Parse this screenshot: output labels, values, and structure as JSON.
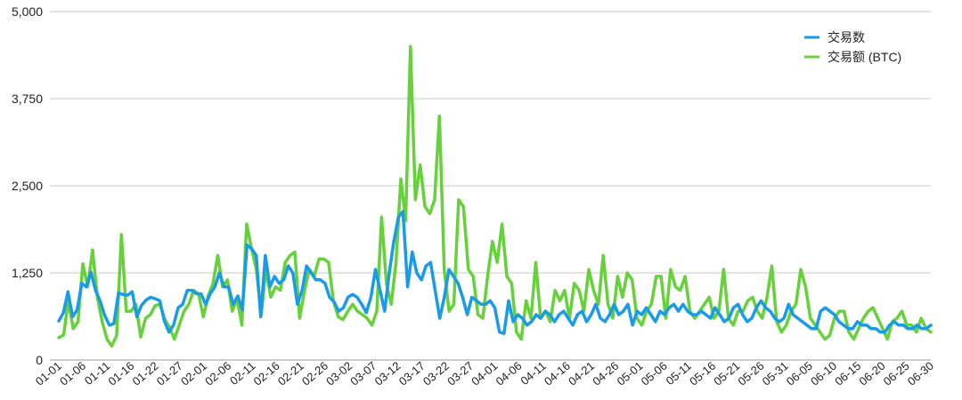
{
  "chart_data": {
    "type": "line",
    "title": "",
    "xlabel": "",
    "ylabel": "",
    "ylim": [
      0,
      5000
    ],
    "yticks": [
      0,
      1250,
      2500,
      3750,
      5000
    ],
    "ytick_labels": [
      "0",
      "1,250",
      "2,500",
      "3,750",
      "5,000"
    ],
    "grid": true,
    "legend_position": "top-right",
    "tick_labels": [
      "01-01",
      "01-06",
      "01-11",
      "01-16",
      "01-22",
      "01-27",
      "02-01",
      "02-06",
      "02-11",
      "02-16",
      "02-21",
      "02-26",
      "03-02",
      "03-07",
      "03-12",
      "03-17",
      "03-22",
      "03-27",
      "04-01",
      "04-06",
      "04-11",
      "04-16",
      "04-21",
      "04-26",
      "05-01",
      "05-06",
      "05-11",
      "05-16",
      "05-21",
      "05-26",
      "05-31",
      "06-05",
      "06-10",
      "06-15",
      "06-20",
      "06-25",
      "06-30"
    ],
    "series": [
      {
        "name": "交易数",
        "color": "#1a9be8",
        "values": [
          560,
          680,
          980,
          620,
          720,
          1100,
          1050,
          1260,
          1000,
          850,
          640,
          500,
          520,
          960,
          940,
          930,
          980,
          620,
          780,
          860,
          900,
          880,
          850,
          560,
          400,
          500,
          750,
          800,
          1000,
          1000,
          950,
          950,
          800,
          950,
          1050,
          1250,
          1050,
          1050,
          800,
          920,
          720,
          1650,
          1600,
          1500,
          620,
          1500,
          1050,
          1200,
          1100,
          1150,
          1350,
          1250,
          800,
          1000,
          1350,
          1250,
          1150,
          1150,
          1100,
          900,
          830,
          700,
          750,
          900,
          940,
          900,
          800,
          680,
          900,
          1300,
          1000,
          700,
          1250,
          1700,
          2050,
          2130,
          1050,
          1550,
          1250,
          1150,
          1350,
          1400,
          1000,
          600,
          900,
          1300,
          1200,
          1100,
          900,
          650,
          900,
          850,
          800,
          800,
          850,
          750,
          400,
          380,
          850,
          550,
          650,
          600,
          500,
          550,
          650,
          600,
          700,
          650,
          550,
          650,
          700,
          600,
          500,
          650,
          700,
          550,
          650,
          800,
          600,
          550,
          650,
          800,
          650,
          700,
          800,
          500,
          700,
          650,
          750,
          650,
          550,
          700,
          650,
          750,
          800,
          700,
          800,
          700,
          650,
          650,
          700,
          650,
          600,
          750,
          650,
          550,
          600,
          750,
          800,
          650,
          550,
          600,
          750,
          850,
          750,
          700,
          600,
          550,
          600,
          800,
          650,
          600,
          550,
          500,
          450,
          450,
          700,
          750,
          700,
          650,
          550,
          500,
          450,
          450,
          550,
          500,
          500,
          450,
          450,
          400,
          400,
          500,
          550,
          500,
          500,
          450,
          450,
          500,
          450,
          450,
          500
        ]
      },
      {
        "name": "交易额 (BTC)",
        "color": "#66d13a",
        "values": [
          320,
          360,
          850,
          450,
          550,
          1380,
          1050,
          1580,
          900,
          550,
          300,
          200,
          350,
          1800,
          700,
          700,
          800,
          330,
          600,
          650,
          780,
          800,
          580,
          470,
          300,
          500,
          700,
          800,
          1000,
          950,
          620,
          920,
          1100,
          1500,
          1050,
          1150,
          700,
          880,
          500,
          1950,
          1600,
          1300,
          650,
          1300,
          900,
          1050,
          1000,
          1400,
          1500,
          1550,
          600,
          1000,
          1300,
          1200,
          1450,
          1450,
          1400,
          850,
          620,
          580,
          700,
          800,
          700,
          650,
          600,
          500,
          700,
          2050,
          1100,
          800,
          1400,
          2600,
          2000,
          4500,
          2300,
          2800,
          2200,
          2100,
          2300,
          3500,
          1300,
          700,
          800,
          2300,
          2200,
          1300,
          1200,
          650,
          600,
          1200,
          1700,
          1400,
          1950,
          1200,
          1100,
          400,
          300,
          850,
          600,
          1400,
          600,
          700,
          550,
          1000,
          850,
          1000,
          600,
          1100,
          1000,
          700,
          1300,
          1000,
          800,
          1500,
          800,
          600,
          1200,
          900,
          1250,
          1150,
          600,
          500,
          700,
          800,
          1200,
          1200,
          600,
          1300,
          1050,
          1000,
          1200,
          700,
          600,
          700,
          800,
          900,
          600,
          700,
          1300,
          600,
          500,
          700,
          700,
          850,
          900,
          700,
          600,
          900,
          1350,
          550,
          400,
          500,
          700,
          800,
          1300,
          1050,
          600,
          500,
          400,
          300,
          350,
          600,
          700,
          700,
          400,
          300,
          450,
          600,
          700,
          750,
          600,
          450,
          300,
          550,
          600,
          700,
          500,
          500,
          400,
          600,
          450,
          400
        ]
      }
    ]
  }
}
